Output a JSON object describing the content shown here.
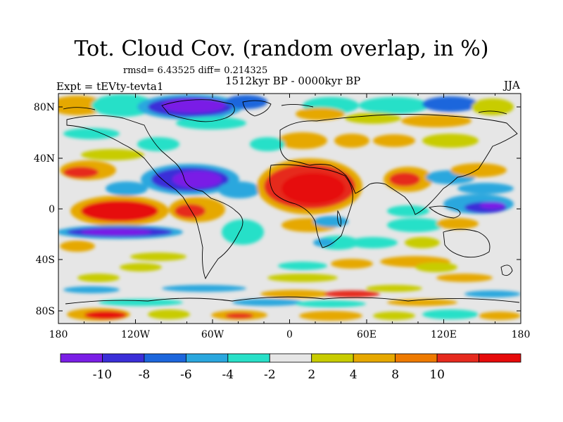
{
  "title": "Tot. Cloud Cov. (random overlap, in %)",
  "stats": "rmsd= 6.43525  diff= 0.214325",
  "period": "1512kyr BP - 0000kyr BP",
  "experiment": "Expt = tEVty-tevta1",
  "season": "JJA",
  "lat_ticks": [
    "80N",
    "40N",
    "0",
    "40S",
    "80S"
  ],
  "lon_ticks": [
    "180",
    "120W",
    "60W",
    "0",
    "60E",
    "120E",
    "180"
  ],
  "colorbar": {
    "labels": [
      "-10",
      "-8",
      "-6",
      "-4",
      "-2",
      "2",
      "4",
      "8",
      "10"
    ],
    "colors": [
      "#7a1ee6",
      "#3a2ed8",
      "#1c66dc",
      "#2aa7de",
      "#28e0c8",
      "#e6e6e6",
      "#c8cc00",
      "#e6a800",
      "#ee7a00",
      "#e62a1e",
      "#e60a0a"
    ]
  }
}
